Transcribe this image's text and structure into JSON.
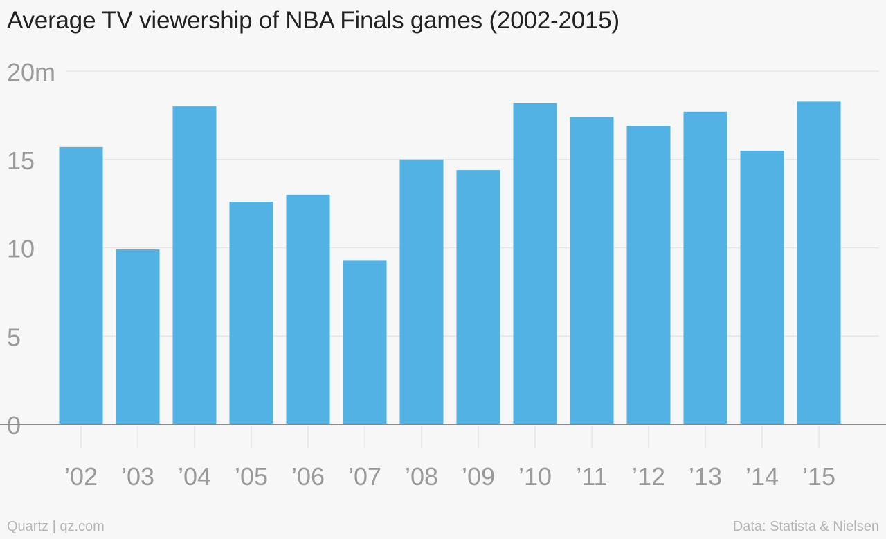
{
  "title": "Average TV viewership of NBA Finals games (2002-2015)",
  "footer": {
    "source_left": "Quartz | qz.com",
    "source_right": "Data: Statista & Nielsen"
  },
  "colors": {
    "bar": "#53b2e4",
    "grid": "#e6e6e6",
    "axis": "#8a8a8a",
    "tick_label": "#9a9a9a",
    "title": "#222222",
    "background": "#f7f7f7"
  },
  "chart_data": {
    "type": "bar",
    "title": "Average TV viewership of NBA Finals games (2002-2015)",
    "xlabel": "",
    "ylabel": "",
    "categories": [
      "’02",
      "’03",
      "’04",
      "’05",
      "’06",
      "’07",
      "’08",
      "’09",
      "’10",
      "’11",
      "’12",
      "’13",
      "’14",
      "’15"
    ],
    "values": [
      15.7,
      9.9,
      18.0,
      12.6,
      13.0,
      9.3,
      15.0,
      14.4,
      18.2,
      17.4,
      16.9,
      17.7,
      15.5,
      18.3
    ],
    "ylim": [
      0,
      20
    ],
    "y_ticks": [
      0,
      5,
      10,
      15,
      20
    ],
    "y_tick_labels": [
      "0",
      "5",
      "10",
      "15",
      "20m"
    ],
    "grid": true,
    "legend": "none"
  }
}
